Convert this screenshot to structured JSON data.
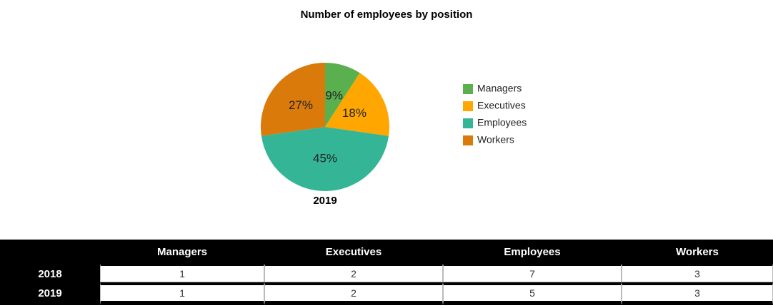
{
  "chart_data": {
    "type": "pie",
    "title": "Number of employees by position",
    "label": "2019",
    "categories": [
      "Managers",
      "Executives",
      "Employees",
      "Workers"
    ],
    "values": [
      9,
      18,
      45,
      27
    ],
    "value_labels": [
      "9%",
      "18%",
      "45%",
      "27%"
    ],
    "colors": [
      "#5ab04f",
      "#ffa600",
      "#34b596",
      "#d97a0b"
    ],
    "legend": "right"
  },
  "table": {
    "columns": [
      "Managers",
      "Executives",
      "Employees",
      "Workers"
    ],
    "rows": [
      {
        "label": "2018",
        "values": [
          1,
          2,
          7,
          3
        ]
      },
      {
        "label": "2019",
        "values": [
          1,
          2,
          5,
          3
        ]
      }
    ]
  }
}
